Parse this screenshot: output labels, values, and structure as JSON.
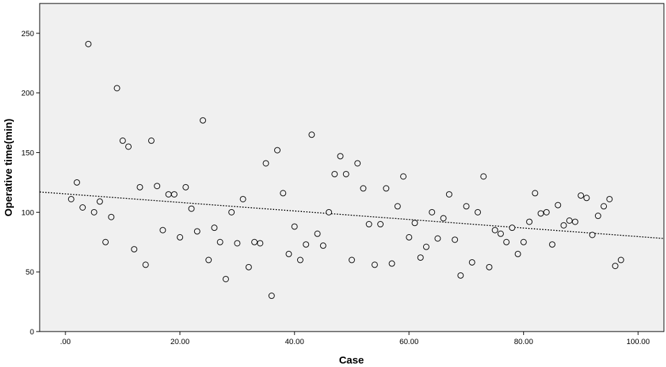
{
  "chart_data": {
    "type": "scatter",
    "xlabel": "Case",
    "ylabel": "Operative time(min)",
    "xlim": [
      -4.5,
      104.5
    ],
    "ylim": [
      0,
      275
    ],
    "x_ticks": [
      0,
      20,
      40,
      60,
      80,
      100
    ],
    "x_tick_labels": [
      ".00",
      "20.00",
      "40.00",
      "60.00",
      "80.00",
      "100.00"
    ],
    "y_ticks": [
      0,
      50,
      100,
      150,
      200,
      250
    ],
    "y_tick_labels": [
      "0",
      "50",
      "100",
      "150",
      "200",
      "250"
    ],
    "grid": false,
    "colors": {
      "plot_background": "#f0f0f0",
      "marker_stroke": "#000000",
      "marker_fill": "#f0f0f0",
      "trend_line": "#000000"
    },
    "trend_line": {
      "style": "dotted",
      "points": [
        [
          -4.5,
          117
        ],
        [
          104.5,
          78
        ]
      ]
    },
    "series": [
      {
        "x": [
          1,
          2,
          3,
          4,
          5,
          6,
          7,
          8,
          9,
          10,
          11,
          12,
          13,
          14,
          15,
          16,
          17,
          18,
          19,
          20,
          21,
          22,
          23,
          24,
          25,
          26,
          27,
          28,
          29,
          30,
          31,
          32,
          33,
          34,
          35,
          36,
          37,
          38,
          39,
          40,
          41,
          42,
          43,
          44,
          45,
          46,
          47,
          48,
          49,
          50,
          51,
          52,
          53,
          54,
          55,
          56,
          57,
          58,
          59,
          60,
          61,
          62,
          63,
          64,
          65,
          66,
          67,
          68,
          69,
          70,
          71,
          72,
          73,
          74,
          75,
          76,
          77,
          78,
          79,
          80,
          81,
          82,
          83,
          84,
          85,
          86,
          87,
          88,
          89,
          90,
          91,
          92,
          93,
          94,
          95,
          96,
          97
        ],
        "y": [
          111,
          125,
          104,
          241,
          100,
          109,
          75,
          96,
          204,
          160,
          155,
          69,
          121,
          56,
          160,
          122,
          85,
          115,
          115,
          79,
          121,
          103,
          84,
          177,
          60,
          87,
          75,
          44,
          100,
          74,
          111,
          54,
          75,
          74,
          141,
          30,
          152,
          116,
          65,
          88,
          60,
          73,
          165,
          82,
          72,
          100,
          132,
          147,
          132,
          60,
          141,
          120,
          90,
          56,
          90,
          120,
          57,
          105,
          130,
          79,
          91,
          62,
          71,
          100,
          78,
          95,
          115,
          77,
          47,
          105,
          58,
          100,
          130,
          54,
          85,
          82,
          75,
          87,
          65,
          75,
          92,
          116,
          99,
          100,
          73,
          106,
          89,
          93,
          92,
          114,
          112,
          81,
          97,
          105,
          111,
          55,
          60
        ]
      }
    ]
  }
}
